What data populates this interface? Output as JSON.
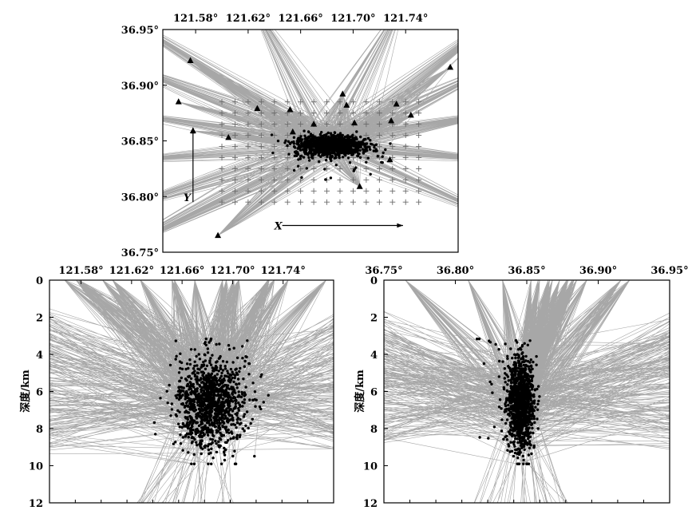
{
  "chart_data": [
    {
      "type": "scatter",
      "panel": "map",
      "x_ticks": [
        "121.58°",
        "121.62°",
        "121.66°",
        "121.70°",
        "121.74°"
      ],
      "x_tick_values": [
        121.58,
        121.62,
        121.66,
        121.7,
        121.74
      ],
      "y_ticks": [
        "36.95°",
        "36.90°",
        "36.85°",
        "36.80°",
        "36.75°"
      ],
      "y_tick_values": [
        36.95,
        36.9,
        36.85,
        36.8,
        36.75
      ],
      "xlim": [
        121.555,
        121.78
      ],
      "ylim": [
        36.75,
        36.95
      ],
      "stations": [
        [
          121.576,
          36.922
        ],
        [
          121.567,
          36.885
        ],
        [
          121.578,
          36.859
        ],
        [
          121.605,
          36.853
        ],
        [
          121.692,
          36.892
        ],
        [
          121.733,
          36.883
        ],
        [
          121.744,
          36.873
        ],
        [
          121.774,
          36.916
        ],
        [
          121.627,
          36.879
        ],
        [
          121.652,
          36.878
        ],
        [
          121.67,
          36.865
        ],
        [
          121.695,
          36.882
        ],
        [
          121.701,
          36.866
        ],
        [
          121.729,
          36.868
        ],
        [
          121.654,
          36.858
        ],
        [
          121.728,
          36.833
        ],
        [
          121.705,
          36.809
        ],
        [
          121.597,
          36.765
        ]
      ],
      "grid_x": [
        121.6,
        121.61,
        121.62,
        121.63,
        121.64,
        121.65,
        121.66,
        121.67,
        121.68,
        121.69,
        121.7,
        121.71,
        121.72,
        121.73,
        121.74,
        121.75
      ],
      "grid_y": [
        36.795,
        36.805,
        36.815,
        36.825,
        36.835,
        36.845,
        36.855,
        36.865,
        36.875,
        36.885
      ],
      "annotations": [
        {
          "label": "X",
          "from": [
            121.646,
            36.774
          ],
          "to": [
            121.738,
            36.774
          ]
        },
        {
          "label": "Y",
          "from": [
            121.578,
            36.795
          ],
          "to": [
            121.578,
            36.862
          ]
        }
      ],
      "event_cluster": {
        "center": [
          121.682,
          36.846
        ],
        "spread": [
          0.013,
          0.0045
        ],
        "depth_center": 6.6,
        "depth_spread": 1.2
      }
    },
    {
      "type": "scatter",
      "panel": "cross-section-longitude",
      "x_ticks": [
        "121.58°",
        "121.62°",
        "121.66°",
        "121.70°",
        "121.74°"
      ],
      "x_tick_values": [
        121.58,
        121.62,
        121.66,
        121.7,
        121.74
      ],
      "xlim": [
        121.555,
        121.78
      ],
      "ylim": [
        0,
        12
      ],
      "y_ticks": [
        "0",
        "2",
        "4",
        "6",
        "8",
        "10",
        "12"
      ],
      "ylabel": "深度/km",
      "y_inverted": true
    },
    {
      "type": "scatter",
      "panel": "cross-section-latitude",
      "x_ticks": [
        "36.75°",
        "36.80°",
        "36.85°",
        "36.90°",
        "36.95°"
      ],
      "x_tick_values": [
        36.75,
        36.8,
        36.85,
        36.9,
        36.95
      ],
      "xlim": [
        36.75,
        36.95
      ],
      "ylim": [
        0,
        12
      ],
      "y_ticks": [
        "0",
        "2",
        "4",
        "6",
        "8",
        "10",
        "12"
      ],
      "ylabel": "深度/km",
      "y_inverted": true
    }
  ],
  "colors": {
    "ray": "#8a8a8a",
    "ray_fill": "#7f7f7f",
    "event": "#000000",
    "grid_cross": "#6a6a6a",
    "frame": "#000000"
  }
}
